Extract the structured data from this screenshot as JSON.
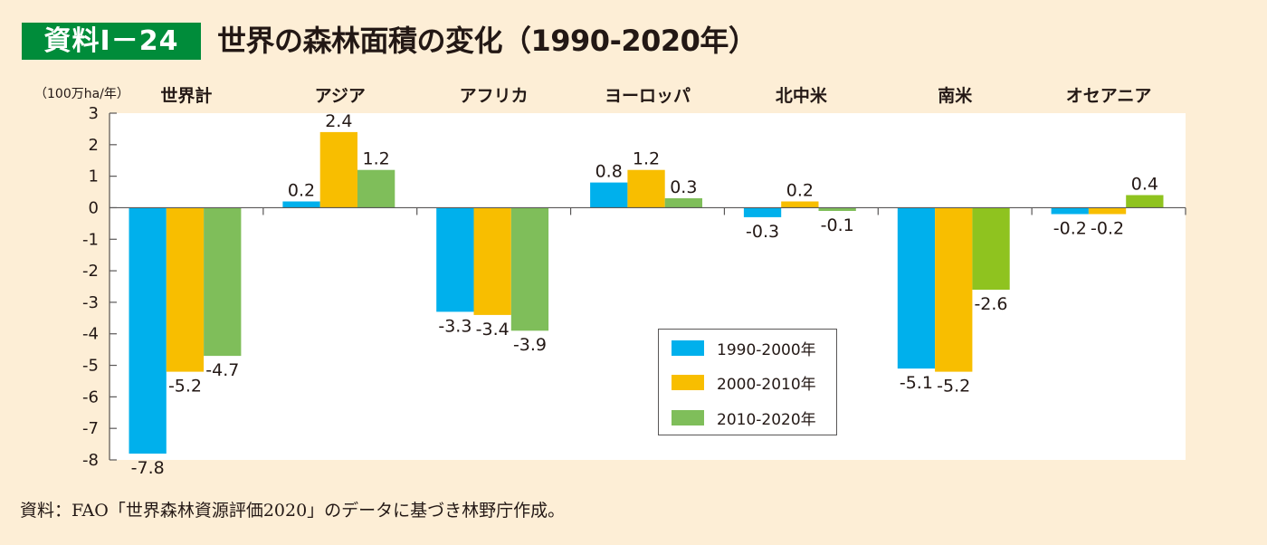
{
  "header": {
    "badge": "資料Ⅰ－24",
    "title": "世界の森林面積の変化（1990-2020年）"
  },
  "unit_label": "（100万ha/年）",
  "source": "資料：FAO「世界森林資源評価2020」のデータに基づき林野庁作成。",
  "colors": {
    "badge": "#008c3a",
    "background": "#fdeed6",
    "series_1990_2000": "#00b0ec",
    "series_2000_2010": "#f8be00",
    "series_2010_2020": "#7fbe5a",
    "series_2010_2020_alt": "#8fc31f"
  },
  "chart_data": {
    "type": "bar",
    "title": "世界の森林面積の変化（1990-2020年）",
    "xlabel": "",
    "ylabel": "（100万ha/年）",
    "ylim": [
      -8,
      3
    ],
    "yticks": [
      3,
      2,
      1,
      0,
      -1,
      -2,
      -3,
      -4,
      -5,
      -6,
      -7,
      -8
    ],
    "grid": false,
    "legend_position": "center-bottom",
    "categories": [
      "世界計",
      "アジア",
      "アフリカ",
      "ヨーロッパ",
      "北中米",
      "南米",
      "オセアニア"
    ],
    "series": [
      {
        "name": "1990-2000年",
        "color": "#00b0ec",
        "values": [
          -7.8,
          0.2,
          -3.3,
          0.8,
          -0.3,
          -5.1,
          -0.2
        ]
      },
      {
        "name": "2000-2010年",
        "color": "#f8be00",
        "values": [
          -5.2,
          2.4,
          -3.4,
          1.2,
          0.2,
          -5.2,
          -0.2
        ]
      },
      {
        "name": "2010-2020年",
        "color": "#7fbe5a",
        "values": [
          -4.7,
          1.2,
          -3.9,
          0.3,
          -0.1,
          -2.6,
          0.4
        ]
      }
    ]
  }
}
